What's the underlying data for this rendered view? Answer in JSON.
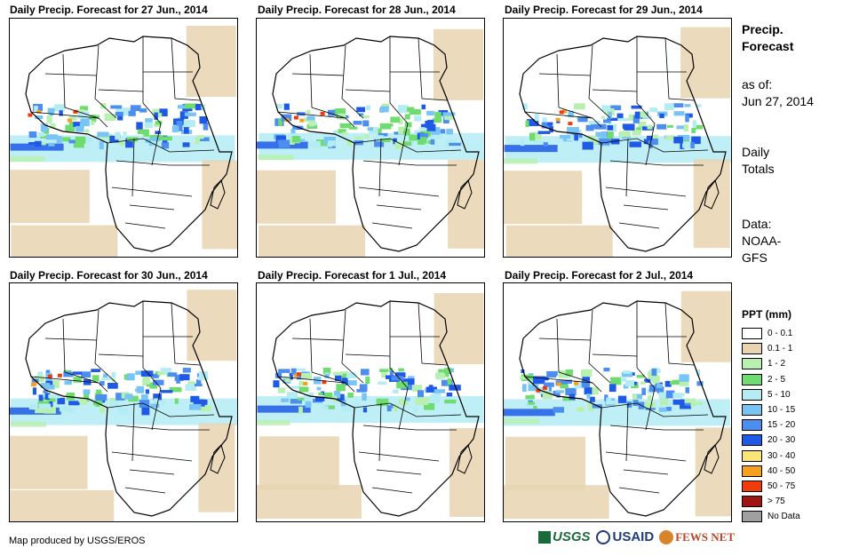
{
  "panels": [
    {
      "title": "Daily Precip. Forecast for 27 Jun., 2014"
    },
    {
      "title": "Daily Precip. Forecast for 28 Jun., 2014"
    },
    {
      "title": "Daily Precip. Forecast for 29 Jun., 2014"
    },
    {
      "title": "Daily Precip. Forecast for 30 Jun., 2014"
    },
    {
      "title": "Daily Precip. Forecast for 1 Jul., 2014"
    },
    {
      "title": "Daily Precip. Forecast for 2 Jul., 2014"
    }
  ],
  "sidebar": {
    "title_line1": "Precip.",
    "title_line2": "Forecast",
    "asof_label": "as of:",
    "asof_date": "Jun 27, 2014",
    "totals_line1": "Daily",
    "totals_line2": "Totals",
    "data_line1": "Data:",
    "data_line2": "NOAA-",
    "data_line3": "GFS"
  },
  "legend": {
    "title": "PPT (mm)",
    "items": [
      {
        "label": "0 - 0.1",
        "color": "#ffffff"
      },
      {
        "label": "0.1 - 1",
        "color": "#e8d4b0"
      },
      {
        "label": "1 - 2",
        "color": "#b8f0b0"
      },
      {
        "label": "2 - 5",
        "color": "#6edc6e"
      },
      {
        "label": "5 - 10",
        "color": "#b4ecf4"
      },
      {
        "label": "10 - 15",
        "color": "#78c4f4"
      },
      {
        "label": "15 - 20",
        "color": "#4c8ef0"
      },
      {
        "label": "20 - 30",
        "color": "#1e5ae6"
      },
      {
        "label": "30 - 40",
        "color": "#fae678"
      },
      {
        "label": "40 - 50",
        "color": "#f5a01e"
      },
      {
        "label": "50 - 75",
        "color": "#f03c0a"
      },
      {
        "label": "> 75",
        "color": "#a01414"
      },
      {
        "label": "No Data",
        "color": "#a0a0a0"
      }
    ]
  },
  "footer": {
    "credit": "Map produced by USGS/EROS",
    "logo_usgs": "USGS",
    "logo_usaid": "USAID",
    "logo_fews": "FEWS NET"
  },
  "colors": {
    "ocean_tan": "#e8d4b0",
    "light_green": "#b8f0b0",
    "green": "#6edc6e",
    "light_blue": "#b4ecf4",
    "mid_blue": "#78c4f4",
    "blue": "#4c8ef0",
    "dark_blue": "#1e5ae6",
    "orange": "#f5a01e",
    "red": "#f03c0a"
  }
}
